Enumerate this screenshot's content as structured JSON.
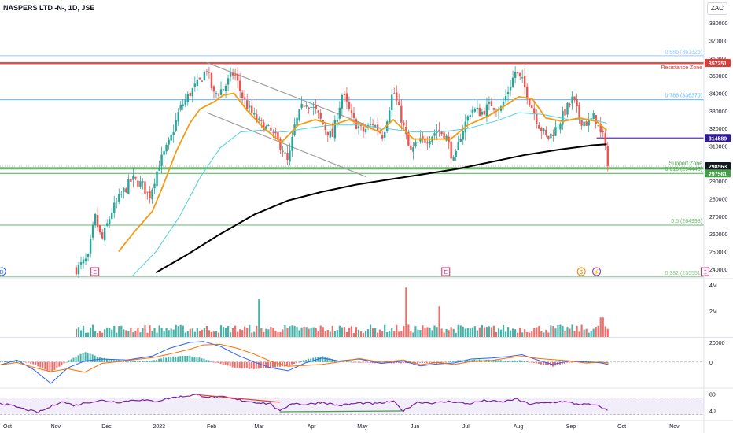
{
  "header": {
    "title": "NASPERS LTD -N-, 1D, JSE",
    "currency": "ZAC"
  },
  "chart_data": {
    "type": "candlestick",
    "price_axis": {
      "range": [
        235000,
        385000
      ],
      "ticks": [
        240000,
        250000,
        260000,
        270000,
        280000,
        290000,
        300000,
        310000,
        320000,
        330000,
        340000,
        350000,
        360000,
        370000,
        380000
      ],
      "labels": [
        "240000",
        "250000",
        "260000",
        "270000",
        "280000",
        "290000",
        "300000",
        "310000",
        "320000",
        "330000",
        "340000",
        "350000",
        "360000",
        "370000",
        "380000"
      ]
    },
    "time_axis": {
      "labels": [
        {
          "text": "Oct",
          "day": 0
        },
        {
          "text": "Nov",
          "day": 31
        },
        {
          "text": "Dec",
          "day": 61
        },
        {
          "text": "2023",
          "day": 92
        },
        {
          "text": "Feb",
          "day": 123
        },
        {
          "text": "Mar",
          "day": 151
        },
        {
          "text": "Apr",
          "day": 182
        },
        {
          "text": "May",
          "day": 212
        },
        {
          "text": "Jun",
          "day": 243
        },
        {
          "text": "Jul",
          "day": 273
        },
        {
          "text": "Aug",
          "day": 304
        },
        {
          "text": "Sep",
          "day": 335
        },
        {
          "text": "Oct",
          "day": 365
        },
        {
          "text": "Nov",
          "day": 396
        },
        {
          "text": "Dec",
          "day": 426
        }
      ]
    },
    "fib_levels": [
      {
        "label": "0.886 (361325)",
        "value": 361325,
        "color": "#90caf9"
      },
      {
        "label": "0.786 (336370)",
        "value": 336370,
        "color": "#64b5f6"
      },
      {
        "label": "0.618 (294445)",
        "value": 294445,
        "color": "#4caf50"
      },
      {
        "label": "0.5 (264998)",
        "value": 264998,
        "color": "#66bb6a"
      },
      {
        "label": "0.382 (235551)",
        "value": 235551,
        "color": "#81c784"
      }
    ],
    "zones": [
      {
        "label": "Resistance Zone",
        "value": 357251,
        "color": "#e53935"
      },
      {
        "label": "Support Zone",
        "value": 297561,
        "color": "#43a047"
      }
    ],
    "price_tags": [
      {
        "label": "357251",
        "value": 357251,
        "color": "#e53935"
      },
      {
        "label": "314589",
        "value": 314589,
        "color": "#311b92"
      },
      {
        "label": "298563",
        "value": 298563,
        "color": "#131722"
      },
      {
        "label": "297561",
        "value": 297561,
        "color": "#43a047"
      }
    ],
    "last_price": 298563,
    "horizontal_line": {
      "value": 314589,
      "from_day": 352,
      "color": "#5e35b1"
    },
    "channel": {
      "upper": [
        {
          "day": 122,
          "value": 357500
        },
        {
          "day": 216,
          "value": 322000
        }
      ],
      "lower": [
        {
          "day": 122,
          "value": 329000
        },
        {
          "day": 216,
          "value": 292500
        }
      ]
    },
    "price_path": [
      {
        "day": 45,
        "value": 240000
      },
      {
        "day": 52,
        "value": 246000
      },
      {
        "day": 56,
        "value": 270000
      },
      {
        "day": 60,
        "value": 256000
      },
      {
        "day": 66,
        "value": 273000
      },
      {
        "day": 72,
        "value": 283000
      },
      {
        "day": 78,
        "value": 291000
      },
      {
        "day": 84,
        "value": 288000
      },
      {
        "day": 88,
        "value": 281000
      },
      {
        "day": 94,
        "value": 300000
      },
      {
        "day": 100,
        "value": 312000
      },
      {
        "day": 106,
        "value": 331000
      },
      {
        "day": 112,
        "value": 340000
      },
      {
        "day": 118,
        "value": 347000
      },
      {
        "day": 122,
        "value": 354000
      },
      {
        "day": 126,
        "value": 339000
      },
      {
        "day": 132,
        "value": 343000
      },
      {
        "day": 138,
        "value": 352000
      },
      {
        "day": 143,
        "value": 338000
      },
      {
        "day": 148,
        "value": 329000
      },
      {
        "day": 153,
        "value": 323000
      },
      {
        "day": 160,
        "value": 318000
      },
      {
        "day": 166,
        "value": 310000
      },
      {
        "day": 170,
        "value": 300000
      },
      {
        "day": 174,
        "value": 322000
      },
      {
        "day": 180,
        "value": 336000
      },
      {
        "day": 186,
        "value": 330000
      },
      {
        "day": 192,
        "value": 320000
      },
      {
        "day": 196,
        "value": 315000
      },
      {
        "day": 202,
        "value": 340000
      },
      {
        "day": 208,
        "value": 325000
      },
      {
        "day": 214,
        "value": 318000
      },
      {
        "day": 220,
        "value": 323000
      },
      {
        "day": 226,
        "value": 316000
      },
      {
        "day": 232,
        "value": 342000
      },
      {
        "day": 237,
        "value": 325000
      },
      {
        "day": 242,
        "value": 306000
      },
      {
        "day": 247,
        "value": 312000
      },
      {
        "day": 252,
        "value": 314000
      },
      {
        "day": 258,
        "value": 319000
      },
      {
        "day": 263,
        "value": 316000
      },
      {
        "day": 268,
        "value": 300000
      },
      {
        "day": 272,
        "value": 317000
      },
      {
        "day": 278,
        "value": 331000
      },
      {
        "day": 284,
        "value": 329000
      },
      {
        "day": 290,
        "value": 334000
      },
      {
        "day": 295,
        "value": 330000
      },
      {
        "day": 300,
        "value": 342000
      },
      {
        "day": 304,
        "value": 352000
      },
      {
        "day": 308,
        "value": 347000
      },
      {
        "day": 312,
        "value": 337000
      },
      {
        "day": 318,
        "value": 322000
      },
      {
        "day": 323,
        "value": 314000
      },
      {
        "day": 328,
        "value": 320000
      },
      {
        "day": 333,
        "value": 329000
      },
      {
        "day": 338,
        "value": 337000
      },
      {
        "day": 342,
        "value": 325000
      },
      {
        "day": 347,
        "value": 323000
      },
      {
        "day": 351,
        "value": 327000
      },
      {
        "day": 354,
        "value": 317000
      },
      {
        "day": 357,
        "value": 314000
      },
      {
        "day": 359,
        "value": 298563
      }
    ],
    "ema_fast": [
      {
        "day": 70,
        "value": 250000
      },
      {
        "day": 80,
        "value": 262000
      },
      {
        "day": 90,
        "value": 273000
      },
      {
        "day": 96,
        "value": 287000
      },
      {
        "day": 104,
        "value": 307000
      },
      {
        "day": 112,
        "value": 323000
      },
      {
        "day": 118,
        "value": 331000
      },
      {
        "day": 126,
        "value": 335000
      },
      {
        "day": 132,
        "value": 339000
      },
      {
        "day": 138,
        "value": 340000
      },
      {
        "day": 146,
        "value": 330000
      },
      {
        "day": 156,
        "value": 320000
      },
      {
        "day": 166,
        "value": 312000
      },
      {
        "day": 176,
        "value": 322000
      },
      {
        "day": 186,
        "value": 325000
      },
      {
        "day": 196,
        "value": 322000
      },
      {
        "day": 206,
        "value": 325000
      },
      {
        "day": 214,
        "value": 322000
      },
      {
        "day": 224,
        "value": 318000
      },
      {
        "day": 232,
        "value": 325000
      },
      {
        "day": 244,
        "value": 314000
      },
      {
        "day": 254,
        "value": 314000
      },
      {
        "day": 266,
        "value": 314000
      },
      {
        "day": 276,
        "value": 322000
      },
      {
        "day": 288,
        "value": 327000
      },
      {
        "day": 298,
        "value": 333000
      },
      {
        "day": 306,
        "value": 338000
      },
      {
        "day": 314,
        "value": 337000
      },
      {
        "day": 322,
        "value": 326000
      },
      {
        "day": 332,
        "value": 324000
      },
      {
        "day": 342,
        "value": 326000
      },
      {
        "day": 352,
        "value": 324000
      },
      {
        "day": 358,
        "value": 319000
      }
    ],
    "sma_mid": [
      {
        "day": 78,
        "value": 236000
      },
      {
        "day": 92,
        "value": 250000
      },
      {
        "day": 106,
        "value": 270000
      },
      {
        "day": 118,
        "value": 292000
      },
      {
        "day": 130,
        "value": 309000
      },
      {
        "day": 142,
        "value": 318000
      },
      {
        "day": 154,
        "value": 319000
      },
      {
        "day": 168,
        "value": 318000
      },
      {
        "day": 180,
        "value": 320000
      },
      {
        "day": 196,
        "value": 322000
      },
      {
        "day": 212,
        "value": 322000
      },
      {
        "day": 228,
        "value": 320000
      },
      {
        "day": 244,
        "value": 318000
      },
      {
        "day": 260,
        "value": 318000
      },
      {
        "day": 276,
        "value": 320000
      },
      {
        "day": 292,
        "value": 324000
      },
      {
        "day": 306,
        "value": 329000
      },
      {
        "day": 320,
        "value": 328000
      },
      {
        "day": 336,
        "value": 325000
      },
      {
        "day": 350,
        "value": 325000
      },
      {
        "day": 358,
        "value": 323000
      }
    ],
    "sma_long": [
      {
        "day": 92,
        "value": 238000
      },
      {
        "day": 110,
        "value": 248000
      },
      {
        "day": 130,
        "value": 260000
      },
      {
        "day": 150,
        "value": 271000
      },
      {
        "day": 170,
        "value": 279000
      },
      {
        "day": 190,
        "value": 284000
      },
      {
        "day": 210,
        "value": 288000
      },
      {
        "day": 230,
        "value": 291000
      },
      {
        "day": 250,
        "value": 294000
      },
      {
        "day": 270,
        "value": 297000
      },
      {
        "day": 290,
        "value": 301000
      },
      {
        "day": 310,
        "value": 305000
      },
      {
        "day": 330,
        "value": 308000
      },
      {
        "day": 350,
        "value": 310500
      },
      {
        "day": 358,
        "value": 311000
      }
    ],
    "volume_axis": {
      "range": [
        0,
        4300000
      ],
      "labels": [
        {
          "text": "4M",
          "value": 4000000
        },
        {
          "text": "2M",
          "value": 2000000
        }
      ]
    },
    "volume_spikes": [
      {
        "day": 153,
        "value": 2900000
      },
      {
        "day": 240,
        "value": 3800000
      },
      {
        "day": 259,
        "value": 2350000
      },
      {
        "day": 355,
        "value": 1500000
      }
    ],
    "macd_axis": {
      "range": [
        -26000,
        24000
      ],
      "labels": [
        {
          "text": "20000",
          "value": 20000
        },
        {
          "text": "0",
          "value": 0
        }
      ]
    },
    "rsi_axis": {
      "range": [
        20,
        90
      ],
      "labels": [
        {
          "text": "80",
          "value": 80
        },
        {
          "text": "40",
          "value": 40
        }
      ],
      "band": [
        30,
        70
      ]
    },
    "rsi_divergence": {
      "bearish": [
        {
          "day": 116,
          "value": 78
        },
        {
          "day": 165,
          "value": 60
        }
      ],
      "bullish": [
        {
          "day": 165,
          "value": 37
        },
        {
          "day": 238,
          "value": 39
        }
      ]
    },
    "event_markers": [
      {
        "symbol": "D",
        "day": 1,
        "color": "#2962ff"
      },
      {
        "symbol": "E",
        "day": 56,
        "color": "#e91e63"
      },
      {
        "symbol": "E",
        "day": 263,
        "color": "#e91e63"
      },
      {
        "symbol": "$",
        "day": 343,
        "color": "#f57c00"
      },
      {
        "symbol": "⚡",
        "day": 352,
        "color": "#9c27b0"
      },
      {
        "symbol": "E",
        "day": 416,
        "color": "#e91e63"
      }
    ]
  }
}
